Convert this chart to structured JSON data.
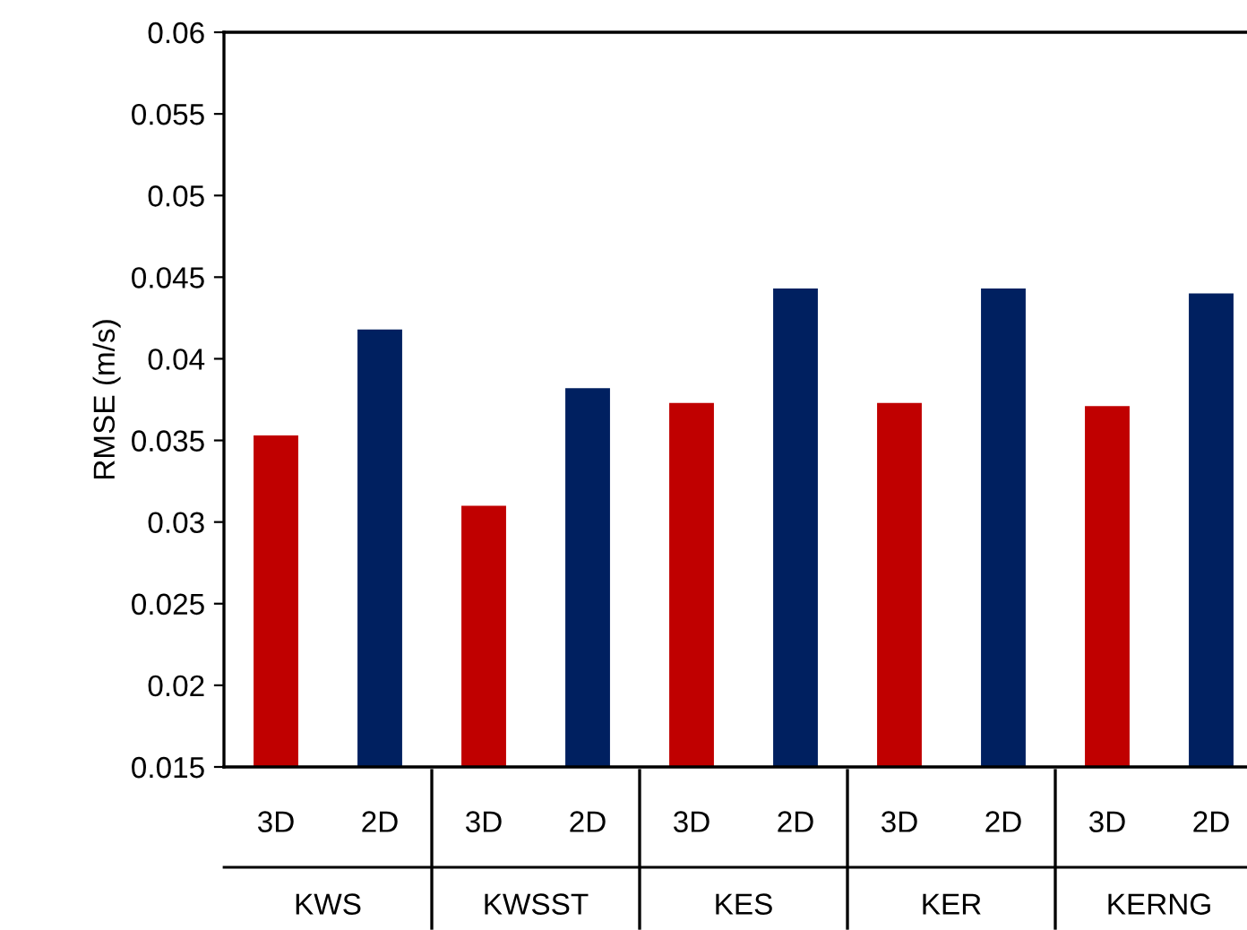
{
  "chart_data": {
    "type": "bar",
    "ylabel": "RMSE (m/s)",
    "categories": [
      "3D",
      "2D",
      "3D",
      "2D",
      "3D",
      "2D",
      "3D",
      "2D",
      "3D",
      "2D"
    ],
    "values": [
      0.0353,
      0.0418,
      0.031,
      0.0382,
      0.0373,
      0.0443,
      0.0373,
      0.0443,
      0.0371,
      0.044
    ],
    "colors": [
      "#c00000",
      "#002060",
      "#c00000",
      "#002060",
      "#c00000",
      "#002060",
      "#c00000",
      "#002060",
      "#c00000",
      "#002060"
    ],
    "annotations": [
      "KWS",
      "KWSST",
      "KES",
      "KER",
      "KERNG"
    ],
    "ylim": [
      0.015,
      0.06
    ],
    "yticks": [
      0.015,
      0.02,
      0.025,
      0.03,
      0.035,
      0.04,
      0.045,
      0.05,
      0.055,
      0.06
    ],
    "grid": false,
    "legend": false
  }
}
